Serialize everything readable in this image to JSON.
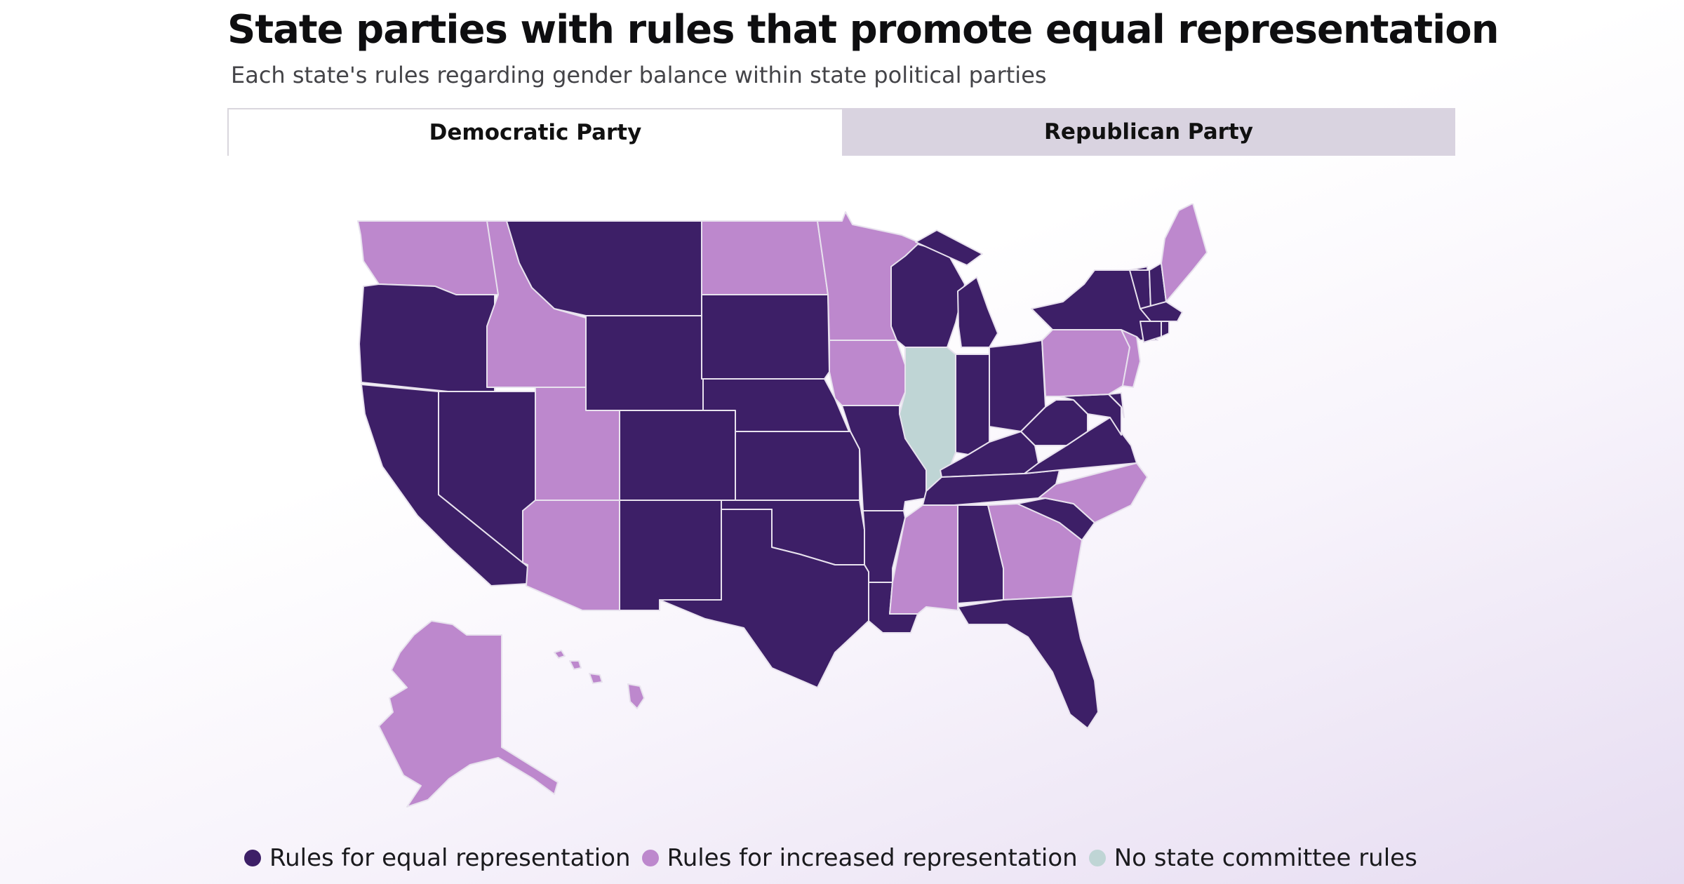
{
  "header": {
    "title": "State parties with rules that promote equal representation",
    "subtitle": "Each state's rules regarding gender balance within state political parties"
  },
  "tabs": [
    {
      "label": "Democratic Party",
      "active": true
    },
    {
      "label": "Republican Party",
      "active": false
    }
  ],
  "colors": {
    "equal": "#3d1f67",
    "increased": "#bd88cd",
    "none": "#bfd5d5"
  },
  "legend": [
    {
      "key": "equal",
      "label": "Rules for equal representation"
    },
    {
      "key": "increased",
      "label": "Rules for increased representation"
    },
    {
      "key": "none",
      "label": "No state committee rules"
    }
  ],
  "states": {
    "WA": "increased",
    "OR": "equal",
    "CA": "equal",
    "NV": "equal",
    "ID": "increased",
    "MT": "equal",
    "WY": "equal",
    "UT": "increased",
    "AZ": "increased",
    "CO": "equal",
    "NM": "equal",
    "ND": "increased",
    "SD": "equal",
    "NE": "equal",
    "KS": "equal",
    "OK": "equal",
    "TX": "equal",
    "MN": "increased",
    "IA": "increased",
    "MO": "equal",
    "AR": "equal",
    "LA": "equal",
    "WI": "equal",
    "IL": "none",
    "MI": "equal",
    "IN": "equal",
    "OH": "equal",
    "KY": "equal",
    "TN": "equal",
    "MS": "increased",
    "AL": "equal",
    "GA": "increased",
    "FL": "equal",
    "SC": "equal",
    "NC": "increased",
    "VA": "equal",
    "WV": "equal",
    "MD": "equal",
    "DE": "equal",
    "NJ": "increased",
    "PA": "increased",
    "NY": "equal",
    "CT": "equal",
    "RI": "equal",
    "MA": "equal",
    "VT": "equal",
    "NH": "equal",
    "ME": "increased",
    "AK": "increased",
    "HI": "increased"
  }
}
